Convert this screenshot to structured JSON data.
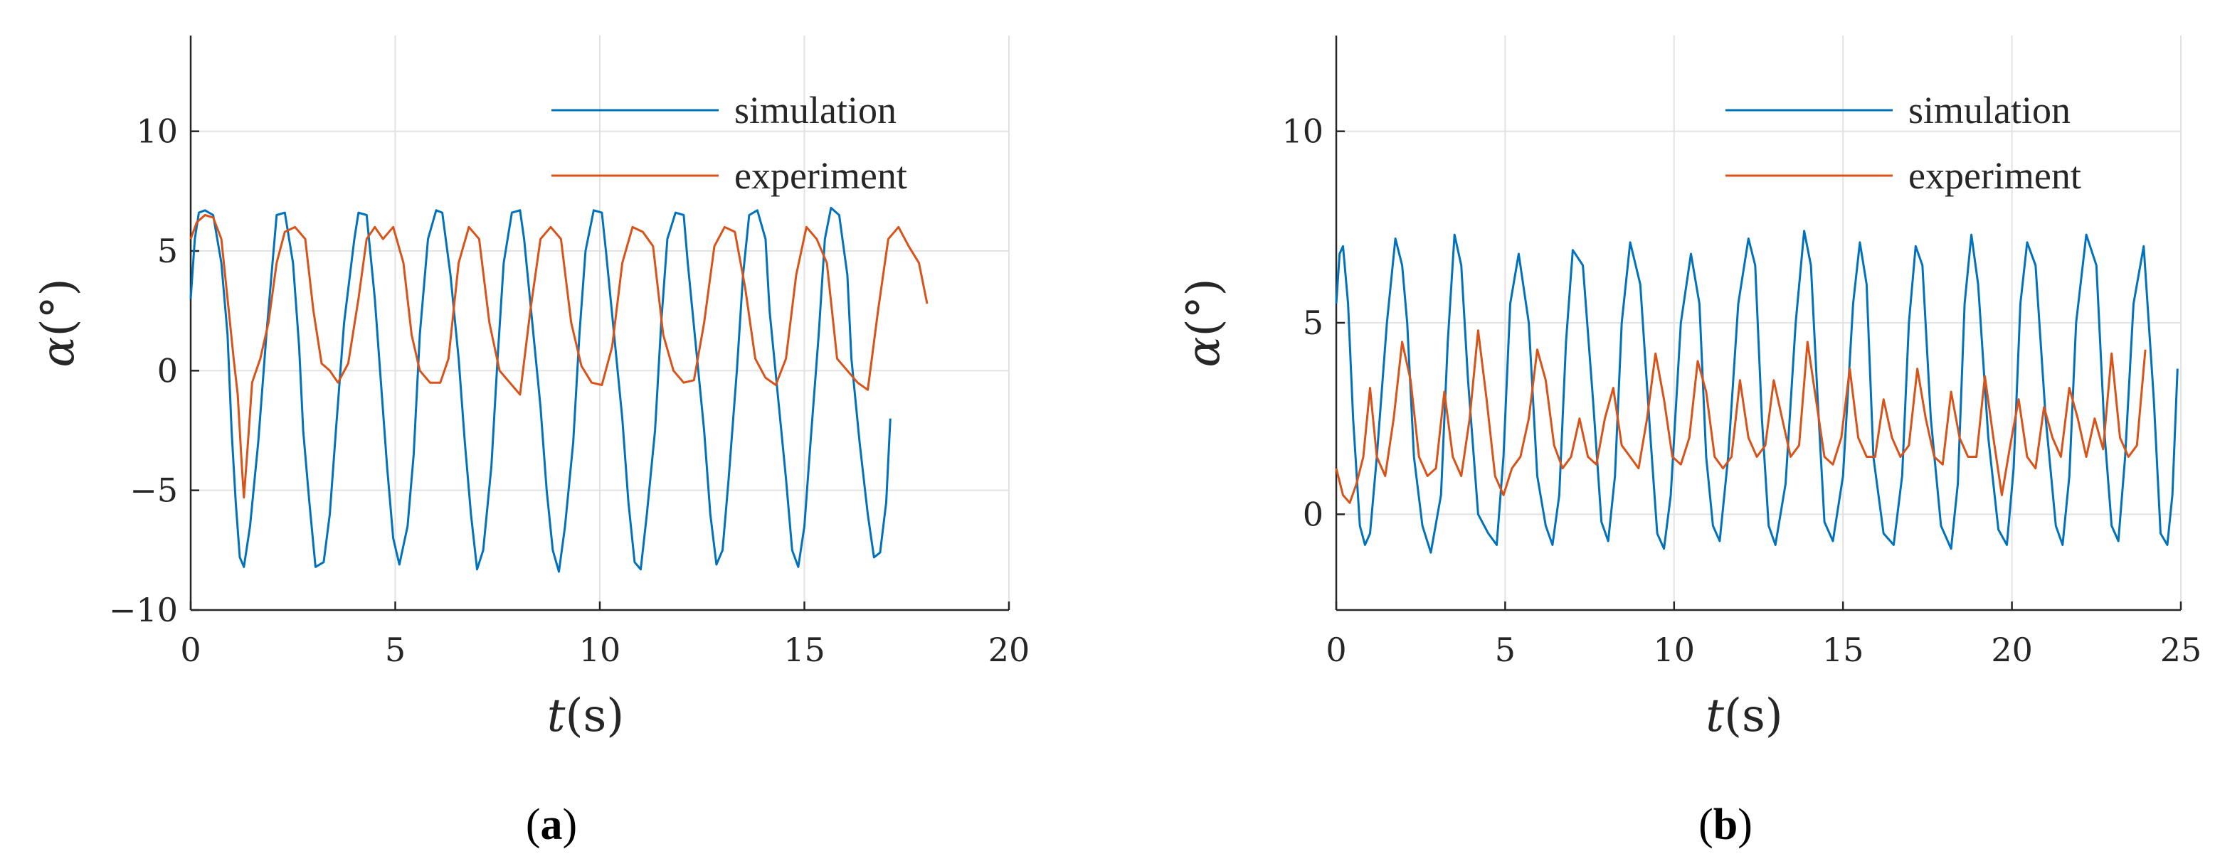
{
  "colors": {
    "simulation": "#0072BD",
    "experiment": "#D95319",
    "text": "#262626",
    "grid": "#e2e2e2"
  },
  "chart_data": [
    {
      "type": "line",
      "caption": {
        "open": "(",
        "letter": "a",
        "close": ")"
      },
      "xlabel": {
        "var": "t",
        "unit": "(s)"
      },
      "ylabel": {
        "var": "α",
        "unit": "(°)"
      },
      "xlim": [
        0,
        20
      ],
      "ylim": [
        -10,
        14
      ],
      "xticks": [
        0,
        5,
        10,
        15,
        20
      ],
      "yticks": [
        -10,
        -5,
        0,
        5,
        10
      ],
      "xtick_labels": [
        "0",
        "5",
        "10",
        "15",
        "20"
      ],
      "ytick_labels": [
        "−10",
        "−5",
        "0",
        "5",
        "10"
      ],
      "grid": true,
      "legend_position": "top-right",
      "series": [
        {
          "name": "simulation",
          "x": [
            0,
            0.1,
            0.2,
            0.35,
            0.55,
            0.75,
            0.9,
            1.0,
            1.1,
            1.2,
            1.3,
            1.45,
            1.65,
            1.85,
            2.0,
            2.1,
            2.3,
            2.5,
            2.65,
            2.75,
            2.9,
            3.05,
            3.25,
            3.4,
            3.55,
            3.75,
            4.0,
            4.1,
            4.3,
            4.5,
            4.65,
            4.8,
            4.95,
            5.1,
            5.3,
            5.45,
            5.6,
            5.8,
            6.0,
            6.15,
            6.35,
            6.55,
            6.7,
            6.85,
            7.0,
            7.15,
            7.35,
            7.5,
            7.65,
            7.85,
            8.05,
            8.15,
            8.35,
            8.55,
            8.7,
            8.85,
            9.0,
            9.15,
            9.35,
            9.5,
            9.65,
            9.85,
            10.05,
            10.15,
            10.35,
            10.55,
            10.7,
            10.85,
            11.0,
            11.15,
            11.35,
            11.5,
            11.65,
            11.85,
            12.05,
            12.15,
            12.35,
            12.55,
            12.7,
            12.85,
            13.0,
            13.15,
            13.35,
            13.5,
            13.65,
            13.85,
            14.05,
            14.15,
            14.35,
            14.55,
            14.7,
            14.85,
            15.0,
            15.15,
            15.35,
            15.5,
            15.65,
            15.85,
            16.05,
            16.15,
            16.35,
            16.55,
            16.7,
            16.85,
            17.0,
            17.1
          ],
          "values": [
            3,
            5.5,
            6.6,
            6.7,
            6.5,
            4.5,
            1.5,
            -2.5,
            -5.5,
            -7.8,
            -8.2,
            -6.5,
            -3,
            1.5,
            4.5,
            6.5,
            6.6,
            4.5,
            1,
            -2.5,
            -5.5,
            -8.2,
            -8.0,
            -6,
            -2.5,
            2,
            5.5,
            6.6,
            6.5,
            3,
            -0.5,
            -4,
            -7,
            -8.1,
            -6.5,
            -3.5,
            1.5,
            5.5,
            6.7,
            6.6,
            4,
            0.5,
            -3,
            -6,
            -8.3,
            -7.5,
            -4,
            0.5,
            4.5,
            6.6,
            6.7,
            5.5,
            2,
            -1.5,
            -5,
            -7.5,
            -8.4,
            -6.5,
            -3,
            1.5,
            5,
            6.7,
            6.6,
            5,
            1.5,
            -2,
            -5.5,
            -8,
            -8.3,
            -6,
            -2.5,
            2,
            5.5,
            6.6,
            6.5,
            4.5,
            1,
            -2.5,
            -6,
            -8.1,
            -7.5,
            -4.5,
            0,
            4,
            6.5,
            6.7,
            5.5,
            2.5,
            -1,
            -4.5,
            -7.5,
            -8.2,
            -6.5,
            -3,
            1.5,
            5.5,
            6.8,
            6.5,
            4,
            0.5,
            -3,
            -6,
            -7.8,
            -7.6,
            -5.5,
            -2
          ]
        },
        {
          "name": "experiment",
          "x": [
            0,
            0.15,
            0.35,
            0.55,
            0.75,
            0.9,
            1.05,
            1.15,
            1.25,
            1.3,
            1.4,
            1.5,
            1.7,
            1.9,
            2.1,
            2.3,
            2.55,
            2.8,
            3.0,
            3.2,
            3.4,
            3.6,
            3.85,
            4.1,
            4.3,
            4.5,
            4.7,
            4.95,
            5.2,
            5.4,
            5.6,
            5.85,
            6.1,
            6.3,
            6.55,
            6.8,
            7.05,
            7.3,
            7.55,
            7.8,
            8.05,
            8.3,
            8.55,
            8.8,
            9.05,
            9.3,
            9.55,
            9.8,
            10.05,
            10.3,
            10.55,
            10.8,
            11.05,
            11.3,
            11.55,
            11.8,
            12.05,
            12.3,
            12.55,
            12.8,
            13.05,
            13.3,
            13.55,
            13.8,
            14.05,
            14.3,
            14.55,
            14.8,
            15.05,
            15.3,
            15.55,
            15.8,
            16.05,
            16.3,
            16.55,
            16.8,
            17.05,
            17.3,
            17.55,
            17.8,
            18.0
          ],
          "values": [
            5.5,
            6.2,
            6.5,
            6.4,
            5.5,
            3,
            0.5,
            -1,
            -4,
            -5.3,
            -3,
            -0.5,
            0.5,
            2,
            4.5,
            5.8,
            6.0,
            5.5,
            2.5,
            0.3,
            0,
            -0.5,
            0.3,
            3,
            5.5,
            6.0,
            5.5,
            6.0,
            4.5,
            1.5,
            0,
            -0.5,
            -0.5,
            0.5,
            4.5,
            6.0,
            5.5,
            2,
            0,
            -0.5,
            -1,
            2.5,
            5.5,
            6.0,
            5.5,
            2,
            0.2,
            -0.5,
            -0.6,
            1,
            4.5,
            6.0,
            5.8,
            5.2,
            1.5,
            0,
            -0.5,
            -0.4,
            2,
            5.2,
            6.0,
            5.8,
            3.5,
            0.5,
            -0.3,
            -0.6,
            0.5,
            4,
            6.0,
            5.5,
            4.5,
            0.5,
            0,
            -0.5,
            -0.8,
            2.5,
            5.5,
            6.0,
            5.2,
            4.5,
            2.8
          ]
        }
      ]
    },
    {
      "type": "line",
      "caption": {
        "open": "(",
        "letter": "b",
        "close": ")"
      },
      "xlabel": {
        "var": "t",
        "unit": "(s)"
      },
      "ylabel": {
        "var": "α",
        "unit": "(°)"
      },
      "xlim": [
        0,
        25
      ],
      "ylim": [
        -2.5,
        12.5
      ],
      "xticks": [
        0,
        5,
        10,
        15,
        20,
        25
      ],
      "yticks": [
        0,
        5,
        10
      ],
      "xtick_labels": [
        "0",
        "5",
        "10",
        "15",
        "20",
        "25"
      ],
      "ytick_labels": [
        "0",
        "5",
        "10"
      ],
      "grid": true,
      "legend_position": "top-right",
      "series": [
        {
          "name": "simulation",
          "x": [
            0,
            0.1,
            0.2,
            0.35,
            0.5,
            0.7,
            0.85,
            1.0,
            1.2,
            1.5,
            1.75,
            1.95,
            2.1,
            2.3,
            2.55,
            2.8,
            3.1,
            3.3,
            3.5,
            3.7,
            3.9,
            4.2,
            4.5,
            4.75,
            4.95,
            5.15,
            5.4,
            5.7,
            5.95,
            6.2,
            6.4,
            6.6,
            6.8,
            7.0,
            7.3,
            7.6,
            7.85,
            8.05,
            8.25,
            8.45,
            8.7,
            9.0,
            9.3,
            9.5,
            9.7,
            9.9,
            10.2,
            10.5,
            10.75,
            10.95,
            11.15,
            11.35,
            11.6,
            11.9,
            12.2,
            12.4,
            12.6,
            12.8,
            13.0,
            13.3,
            13.6,
            13.85,
            14.05,
            14.25,
            14.45,
            14.7,
            15.0,
            15.3,
            15.5,
            15.7,
            15.9,
            16.2,
            16.5,
            16.75,
            16.95,
            17.15,
            17.35,
            17.6,
            17.9,
            18.2,
            18.4,
            18.6,
            18.8,
            19.0,
            19.3,
            19.6,
            19.85,
            20.05,
            20.25,
            20.45,
            20.7,
            21.0,
            21.3,
            21.5,
            21.7,
            21.9,
            22.2,
            22.5,
            22.75,
            22.95,
            23.15,
            23.35,
            23.6,
            23.9,
            24.2,
            24.4,
            24.6,
            24.75,
            24.9
          ],
          "values": [
            5.5,
            6.8,
            7.0,
            5.5,
            2.5,
            -0.3,
            -0.8,
            -0.5,
            1.5,
            5.0,
            7.2,
            6.5,
            5.0,
            1.5,
            -0.3,
            -1.0,
            0.5,
            4.5,
            7.3,
            6.5,
            3.5,
            0,
            -0.5,
            -0.8,
            1.5,
            5.5,
            6.8,
            5.0,
            1.0,
            -0.3,
            -0.8,
            0.5,
            4.5,
            6.9,
            6.5,
            3.0,
            -0.2,
            -0.7,
            1.0,
            5.0,
            7.1,
            6.0,
            2.0,
            -0.5,
            -0.9,
            0.5,
            5.0,
            6.8,
            5.5,
            1.5,
            -0.3,
            -0.7,
            1.5,
            5.5,
            7.2,
            6.5,
            2.5,
            -0.3,
            -0.8,
            0.8,
            5.0,
            7.4,
            6.5,
            3.0,
            -0.2,
            -0.7,
            1.0,
            5.5,
            7.1,
            6.0,
            1.5,
            -0.5,
            -0.8,
            1.0,
            5.0,
            7.0,
            6.5,
            2.5,
            -0.3,
            -0.9,
            0.8,
            5.5,
            7.3,
            6.0,
            2.0,
            -0.4,
            -0.8,
            1.2,
            5.5,
            7.1,
            6.5,
            2.5,
            -0.3,
            -0.8,
            1.0,
            5.0,
            7.3,
            6.5,
            2.0,
            -0.3,
            -0.7,
            1.5,
            5.5,
            7.0,
            3.0,
            -0.5,
            -0.8,
            0.5,
            3.8
          ]
        },
        {
          "name": "experiment",
          "x": [
            0,
            0.2,
            0.4,
            0.6,
            0.8,
            1.0,
            1.2,
            1.45,
            1.7,
            1.95,
            2.2,
            2.45,
            2.7,
            2.95,
            3.2,
            3.45,
            3.7,
            3.95,
            4.2,
            4.45,
            4.7,
            4.95,
            5.2,
            5.45,
            5.7,
            5.95,
            6.2,
            6.45,
            6.7,
            6.95,
            7.2,
            7.45,
            7.7,
            7.95,
            8.2,
            8.45,
            8.7,
            8.95,
            9.2,
            9.45,
            9.7,
            9.95,
            10.2,
            10.45,
            10.7,
            10.95,
            11.2,
            11.45,
            11.7,
            11.95,
            12.2,
            12.45,
            12.7,
            12.95,
            13.2,
            13.45,
            13.7,
            13.95,
            14.2,
            14.45,
            14.7,
            14.95,
            15.2,
            15.45,
            15.7,
            15.95,
            16.2,
            16.45,
            16.7,
            16.95,
            17.2,
            17.45,
            17.7,
            17.95,
            18.2,
            18.45,
            18.7,
            18.95,
            19.2,
            19.45,
            19.7,
            19.95,
            20.2,
            20.45,
            20.7,
            20.95,
            21.2,
            21.45,
            21.7,
            21.95,
            22.2,
            22.45,
            22.7,
            22.95,
            23.2,
            23.45,
            23.7,
            23.95
          ],
          "values": [
            1.2,
            0.5,
            0.3,
            0.8,
            1.5,
            3.3,
            1.5,
            1.0,
            2.5,
            4.5,
            3.5,
            1.5,
            1.0,
            1.2,
            3.2,
            1.5,
            1.0,
            2.5,
            4.8,
            3.0,
            1.0,
            0.5,
            1.2,
            1.5,
            2.5,
            4.3,
            3.5,
            1.8,
            1.2,
            1.5,
            2.5,
            1.5,
            1.3,
            2.5,
            3.3,
            1.8,
            1.5,
            1.2,
            2.5,
            4.2,
            3.0,
            1.5,
            1.3,
            2.0,
            4.0,
            3.2,
            1.5,
            1.2,
            1.5,
            3.5,
            2.0,
            1.5,
            1.8,
            3.5,
            2.5,
            1.5,
            1.8,
            4.5,
            3.0,
            1.5,
            1.3,
            2.0,
            3.8,
            2.0,
            1.5,
            1.5,
            3.0,
            2.0,
            1.5,
            1.8,
            3.8,
            2.5,
            1.5,
            1.3,
            3.2,
            2.0,
            1.5,
            1.5,
            3.6,
            2.0,
            0.5,
            1.8,
            3.0,
            1.5,
            1.2,
            2.8,
            2.0,
            1.5,
            3.3,
            2.5,
            1.5,
            2.5,
            1.7,
            4.2,
            2.0,
            1.5,
            1.8,
            4.3
          ]
        }
      ]
    }
  ]
}
